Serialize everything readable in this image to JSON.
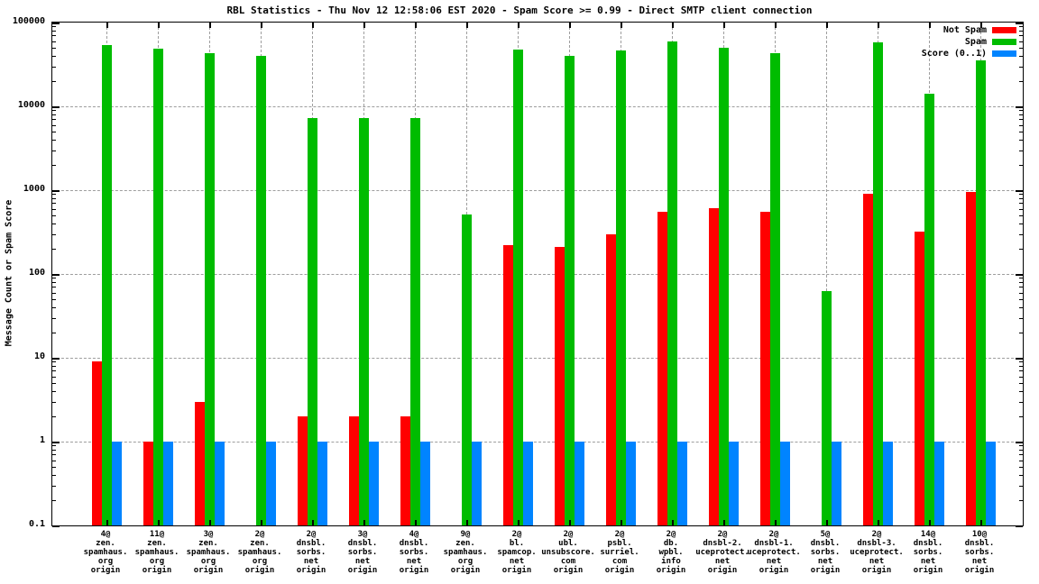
{
  "chart_data": {
    "type": "bar",
    "title": "RBL Statistics - Thu Nov 12 12:58:06 EST 2020 - Spam Score >= 0.99 - Direct SMTP client connection",
    "ylabel": "Message Count or Spam Score",
    "yscale": "log",
    "ylim": [
      0.1,
      100000
    ],
    "ytick_labels": [
      "100000",
      "10000",
      "1000",
      "100",
      "10",
      "1",
      "0.1"
    ],
    "grid": true,
    "legend_position": "top-right-inside",
    "background_color": "#ffffff",
    "grid_color": "#9e9e9e",
    "categories": [
      [
        "4@",
        "zen.",
        "spamhaus.",
        "org",
        "origin"
      ],
      [
        "11@",
        "zen.",
        "spamhaus.",
        "org",
        "origin"
      ],
      [
        "3@",
        "zen.",
        "spamhaus.",
        "org",
        "origin"
      ],
      [
        "2@",
        "zen.",
        "spamhaus.",
        "org",
        "origin"
      ],
      [
        "2@",
        "dnsbl.",
        "sorbs.",
        "net",
        "origin"
      ],
      [
        "3@",
        "dnsbl.",
        "sorbs.",
        "net",
        "origin"
      ],
      [
        "4@",
        "dnsbl.",
        "sorbs.",
        "net",
        "origin"
      ],
      [
        "9@",
        "zen.",
        "spamhaus.",
        "org",
        "origin"
      ],
      [
        "2@",
        "bl.",
        "spamcop.",
        "net",
        "origin"
      ],
      [
        "2@",
        "ubl.",
        "unsubscore.",
        "com",
        "origin"
      ],
      [
        "2@",
        "psbl.",
        "surriel.",
        "com",
        "origin"
      ],
      [
        "2@",
        "db.",
        "wpbl.",
        "info",
        "origin"
      ],
      [
        "2@",
        "dnsbl-2.",
        "uceprotect.",
        "net",
        "origin"
      ],
      [
        "2@",
        "dnsbl-1.",
        "uceprotect.",
        "net",
        "origin"
      ],
      [
        "5@",
        "dnsbl.",
        "sorbs.",
        "net",
        "origin"
      ],
      [
        "2@",
        "dnsbl-3.",
        "uceprotect.",
        "net",
        "origin"
      ],
      [
        "14@",
        "dnsbl.",
        "sorbs.",
        "net",
        "origin"
      ],
      [
        "10@",
        "dnsbl.",
        "sorbs.",
        "net",
        "origin"
      ]
    ],
    "series": [
      {
        "name": "Not Spam",
        "color": "#ff0000",
        "values": [
          9,
          1,
          3,
          null,
          2,
          2,
          2,
          null,
          220,
          210,
          300,
          550,
          610,
          550,
          null,
          900,
          320,
          950
        ]
      },
      {
        "name": "Spam",
        "color": "#00bc00",
        "values": [
          54000,
          49000,
          43000,
          40000,
          7200,
          7200,
          7200,
          510,
          47000,
          40000,
          46000,
          59000,
          50000,
          43000,
          62,
          58000,
          14000,
          35000
        ]
      },
      {
        "name": "Score (0..1)",
        "color": "#0084ff",
        "values": [
          1,
          1,
          1,
          1,
          1,
          1,
          1,
          1,
          1,
          1,
          1,
          1,
          1,
          1,
          1,
          1,
          1,
          1
        ]
      }
    ]
  }
}
